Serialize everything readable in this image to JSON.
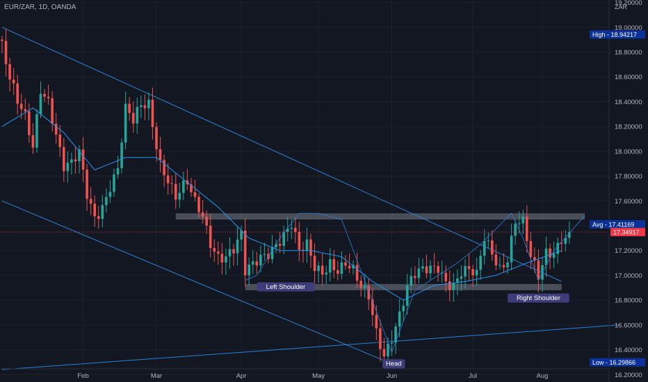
{
  "header": {
    "symbol": "EUR/ZAR, 1D, OANDA",
    "currency": "ZAR"
  },
  "colors": {
    "background": "#131722",
    "up": "#26a69a",
    "down": "#ef5350",
    "ma": "#2196f3",
    "trendline": "#2a82d8",
    "zone": "#787b86",
    "axis_text": "#b2b5be",
    "last_price_bg": "#f23645",
    "label_bg": "#0c3299",
    "pattern_label_bg": "#3f3c7a"
  },
  "chart_data": {
    "type": "candlestick",
    "instrument": "EUR/ZAR",
    "timeframe": "1D",
    "ylim": [
      16.14,
      19.22
    ],
    "y_ticks": [
      16.2,
      16.4,
      16.6,
      16.8,
      17.0,
      17.2,
      17.4,
      17.6,
      17.8,
      18.0,
      18.2,
      18.4,
      18.6,
      18.8,
      19.0,
      19.2
    ],
    "y_tick_labels": [
      "16.20000",
      "16.40000",
      "16.60000",
      "16.80000",
      "17.00000",
      "17.20000",
      "17.40000",
      "17.60000",
      "17.80000",
      "18.00000",
      "18.20000",
      "18.40000",
      "18.60000",
      "18.80000",
      "19.00000",
      "19.20000"
    ],
    "x_labels": [
      "Feb",
      "Mar",
      "Apr",
      "May",
      "Jun",
      "Jul",
      "Aug"
    ],
    "x_label_index": [
      21,
      40,
      62,
      82,
      101,
      122,
      140
    ],
    "candle_count": 148,
    "close_path": [
      [
        0,
        18.85
      ],
      [
        2,
        18.55
      ],
      [
        4,
        18.35
      ],
      [
        6,
        18.25
      ],
      [
        8,
        18.05
      ],
      [
        10,
        18.55
      ],
      [
        12,
        18.45
      ],
      [
        14,
        18.15
      ],
      [
        16,
        17.85
      ],
      [
        18,
        17.85
      ],
      [
        20,
        17.95
      ],
      [
        22,
        17.65
      ],
      [
        24,
        17.5
      ],
      [
        26,
        17.6
      ],
      [
        28,
        17.75
      ],
      [
        30,
        17.85
      ],
      [
        32,
        18.3
      ],
      [
        34,
        18.2
      ],
      [
        36,
        18.35
      ],
      [
        38,
        18.4
      ],
      [
        40,
        18.1
      ],
      [
        41,
        17.95
      ],
      [
        43,
        17.8
      ],
      [
        45,
        17.62
      ],
      [
        48,
        17.7
      ],
      [
        50,
        17.55
      ],
      [
        52,
        17.48
      ],
      [
        54,
        17.3
      ],
      [
        56,
        17.2
      ],
      [
        58,
        17.18
      ],
      [
        60,
        17.2
      ],
      [
        62,
        17.28
      ],
      [
        63,
        16.98
      ],
      [
        65,
        17.05
      ],
      [
        67,
        17.15
      ],
      [
        69,
        17.22
      ],
      [
        71,
        17.3
      ],
      [
        73,
        17.35
      ],
      [
        75,
        17.4
      ],
      [
        77,
        17.15
      ],
      [
        79,
        17.2
      ],
      [
        81,
        17.05
      ],
      [
        83,
        17.05
      ],
      [
        85,
        17.15
      ],
      [
        87,
        17.08
      ],
      [
        89,
        17.1
      ],
      [
        91,
        17.0
      ],
      [
        93,
        16.85
      ],
      [
        95,
        16.8
      ],
      [
        97,
        16.55
      ],
      [
        99,
        16.4
      ],
      [
        101,
        16.55
      ],
      [
        103,
        16.7
      ],
      [
        105,
        16.88
      ],
      [
        107,
        16.96
      ],
      [
        109,
        17.0
      ],
      [
        111,
        17.05
      ],
      [
        113,
        17.1
      ],
      [
        115,
        17.0
      ],
      [
        117,
        16.95
      ],
      [
        119,
        17.02
      ],
      [
        121,
        17.0
      ],
      [
        123,
        16.95
      ],
      [
        125,
        17.28
      ],
      [
        127,
        17.2
      ],
      [
        129,
        17.1
      ],
      [
        131,
        17.18
      ],
      [
        133,
        17.45
      ],
      [
        135,
        17.4
      ],
      [
        137,
        17.1
      ],
      [
        139,
        16.95
      ],
      [
        141,
        17.18
      ],
      [
        143,
        17.22
      ],
      [
        145,
        17.34917
      ]
    ],
    "moving_average_path": [
      [
        0,
        18.2
      ],
      [
        8,
        18.35
      ],
      [
        16,
        18.15
      ],
      [
        24,
        17.85
      ],
      [
        32,
        17.95
      ],
      [
        40,
        17.95
      ],
      [
        48,
        17.75
      ],
      [
        56,
        17.55
      ],
      [
        64,
        17.3
      ],
      [
        72,
        17.2
      ],
      [
        80,
        17.2
      ],
      [
        88,
        17.15
      ],
      [
        96,
        16.95
      ],
      [
        104,
        16.8
      ],
      [
        112,
        16.92
      ],
      [
        120,
        16.95
      ],
      [
        128,
        17.0
      ],
      [
        136,
        17.1
      ],
      [
        145,
        17.2
      ]
    ],
    "trendlines": [
      [
        [
          0,
          19.0
        ],
        [
          145,
          16.95
        ]
      ],
      [
        [
          0,
          17.6
        ],
        [
          100,
          16.3
        ]
      ],
      [
        [
          0,
          16.24
        ],
        [
          160,
          16.6
        ]
      ]
    ],
    "zones": [
      {
        "from": 45,
        "to": 151,
        "top": 17.5,
        "bottom": 17.45
      },
      {
        "from": 63,
        "to": 145,
        "top": 16.93,
        "bottom": 16.88
      }
    ],
    "pattern_path": [
      [
        63,
        16.96
      ],
      [
        66,
        17.0
      ],
      [
        72,
        17.3
      ],
      [
        77,
        17.5
      ],
      [
        82,
        17.5
      ],
      [
        88,
        17.45
      ],
      [
        101,
        16.38
      ],
      [
        107,
        16.88
      ],
      [
        118,
        17.1
      ],
      [
        124,
        17.25
      ],
      [
        132,
        17.5
      ],
      [
        135,
        17.3
      ],
      [
        139,
        16.96
      ],
      [
        143,
        17.2
      ],
      [
        151,
        17.48
      ]
    ],
    "pattern_labels": [
      {
        "text": "Left Shoulder",
        "i": 73.5,
        "y": 16.91
      },
      {
        "text": "Head",
        "i": 101.5,
        "y": 16.29
      },
      {
        "text": "Right Shoulder",
        "i": 139,
        "y": 16.82
      }
    ],
    "price_labels": [
      {
        "label": "High",
        "value": "18.94217",
        "y": 18.94217
      },
      {
        "label": "Avg",
        "value": "17.41169",
        "y": 17.41169
      },
      {
        "label": "",
        "value": "17.34917",
        "y": 17.34917
      },
      {
        "label": "Low",
        "value": "16.29866",
        "y": 16.29866
      }
    ],
    "last_price": 17.34917
  }
}
